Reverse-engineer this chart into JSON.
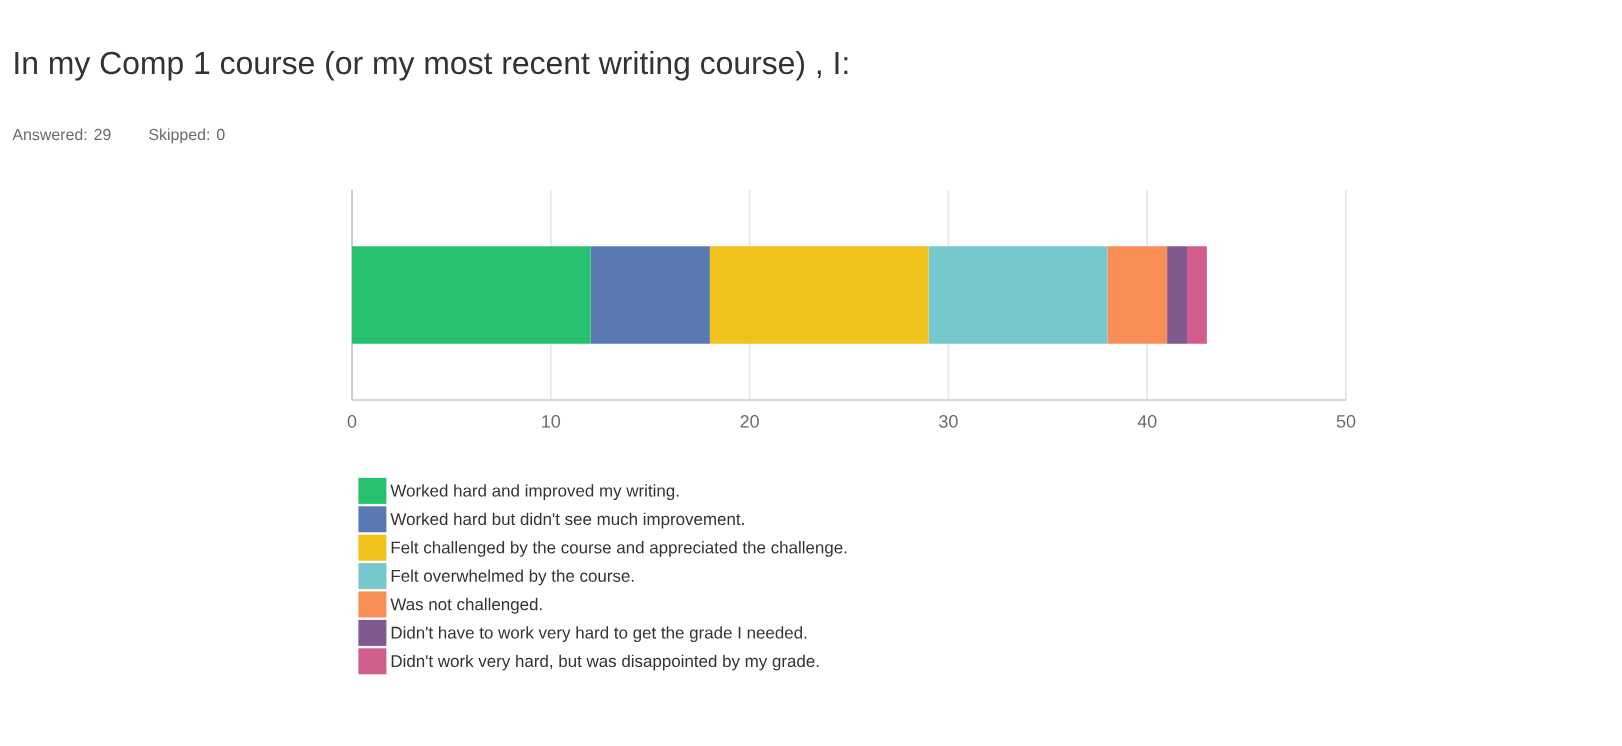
{
  "chart_data": {
    "type": "bar",
    "orientation": "horizontal",
    "stacked": true,
    "title": "In my Comp 1 course (or my most recent writing course) , I:",
    "annotations": [
      "Answered: 29",
      "Skipped: 0"
    ],
    "categories": [
      null
    ],
    "series": [
      {
        "name": "Worked hard and improved my writing.",
        "color": "#25c16f",
        "values": [
          12
        ]
      },
      {
        "name": "Worked hard but didn't see much improvement.",
        "color": "#5a79b4",
        "values": [
          6
        ]
      },
      {
        "name": "Felt challenged by the course and appreciated the challenge.",
        "color": "#f1c21b",
        "values": [
          11
        ]
      },
      {
        "name": "Felt overwhelmed by the course.",
        "color": "#76c8cc",
        "values": [
          9
        ]
      },
      {
        "name": "Was not challenged.",
        "color": "#f98d56",
        "values": [
          3
        ]
      },
      {
        "name": "Didn't have to work very hard to get the grade I needed.",
        "color": "#7e5a8f",
        "values": [
          1
        ]
      },
      {
        "name": "Didn't work very hard, but was disappointed by my grade.",
        "color": "#d15d8e",
        "values": [
          1
        ]
      }
    ],
    "xlim": [
      0,
      50
    ],
    "xticks": [
      0,
      10,
      20,
      30,
      40,
      50
    ],
    "grid": "x",
    "legend": "bottom"
  }
}
